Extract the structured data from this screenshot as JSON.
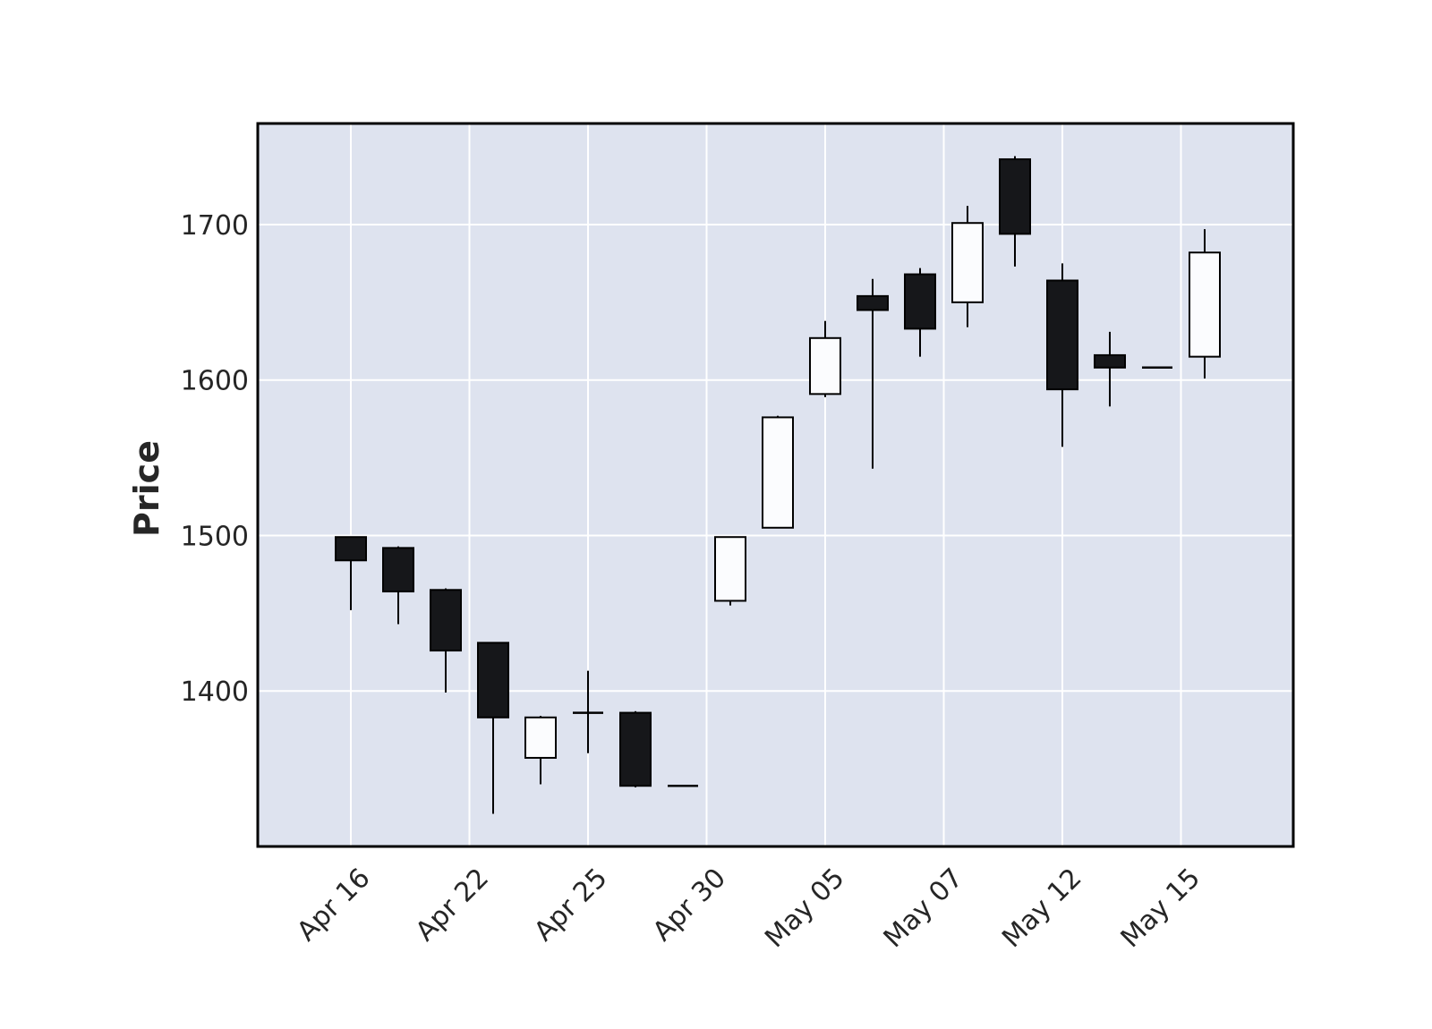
{
  "chart_data": {
    "type": "candlestick",
    "title": "",
    "xlabel": "",
    "ylabel": "Price",
    "ylim": [
      1300,
      1765
    ],
    "yticks": [
      1400,
      1500,
      1600,
      1700
    ],
    "xticks": [
      {
        "index": 0,
        "label": "Apr 16"
      },
      {
        "index": 2.5,
        "label": "Apr 22"
      },
      {
        "index": 5,
        "label": "Apr 25"
      },
      {
        "index": 7.5,
        "label": "Apr 30"
      },
      {
        "index": 10,
        "label": "May 05"
      },
      {
        "index": 12.5,
        "label": "May 07"
      },
      {
        "index": 15,
        "label": "May 12"
      },
      {
        "index": 17.5,
        "label": "May 15"
      }
    ],
    "grid": true,
    "colors": {
      "plot_background": "#dee3ef",
      "grid": "#ffffff",
      "up": "#fbfcfe",
      "down": "#16171a",
      "edge": "#000000"
    },
    "candles": [
      {
        "open": 1499,
        "high": 1499,
        "low": 1452,
        "close": 1484
      },
      {
        "open": 1492,
        "high": 1493,
        "low": 1443,
        "close": 1464
      },
      {
        "open": 1465,
        "high": 1466,
        "low": 1399,
        "close": 1426
      },
      {
        "open": 1431,
        "high": 1431,
        "low": 1321,
        "close": 1383
      },
      {
        "open": 1357,
        "high": 1384,
        "low": 1340,
        "close": 1383
      },
      {
        "open": 1386,
        "high": 1413,
        "low": 1360,
        "close": 1386
      },
      {
        "open": 1386,
        "high": 1387,
        "low": 1338,
        "close": 1339
      },
      {
        "open": 1339,
        "high": 1339,
        "low": 1339,
        "close": 1339
      },
      {
        "open": 1458,
        "high": 1499,
        "low": 1455,
        "close": 1499
      },
      {
        "open": 1505,
        "high": 1577,
        "low": 1505,
        "close": 1576
      },
      {
        "open": 1591,
        "high": 1638,
        "low": 1589,
        "close": 1627
      },
      {
        "open": 1654,
        "high": 1665,
        "low": 1543,
        "close": 1645
      },
      {
        "open": 1668,
        "high": 1672,
        "low": 1615,
        "close": 1633
      },
      {
        "open": 1650,
        "high": 1712,
        "low": 1634,
        "close": 1701
      },
      {
        "open": 1742,
        "high": 1744,
        "low": 1673,
        "close": 1694
      },
      {
        "open": 1664,
        "high": 1675,
        "low": 1557,
        "close": 1594
      },
      {
        "open": 1616,
        "high": 1631,
        "low": 1583,
        "close": 1608
      },
      {
        "open": 1608,
        "high": 1608,
        "low": 1608,
        "close": 1608
      },
      {
        "open": 1615,
        "high": 1697,
        "low": 1601,
        "close": 1682
      }
    ]
  }
}
